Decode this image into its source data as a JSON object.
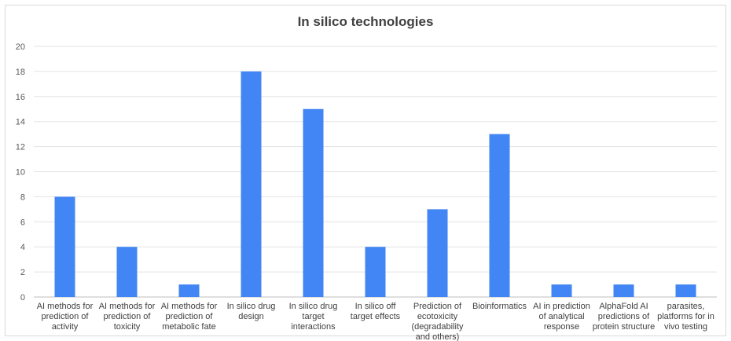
{
  "chart_data": {
    "type": "bar",
    "title": "In silico technologies",
    "xlabel": "",
    "ylabel": "",
    "ylim": [
      0,
      20
    ],
    "yticks": [
      0,
      2,
      4,
      6,
      8,
      10,
      12,
      14,
      16,
      18,
      20
    ],
    "grid": true,
    "legend": "none",
    "bar_color": "#4285f4",
    "categories": [
      "AI methods for prediction of activity",
      "AI methods for prediction of toxicity",
      "AI methods for prediction of metabolic fate",
      "In silico drug design",
      "In silico drug target interactions",
      "In silico off target effects",
      "Prediction of ecotoxicity (degradability and others)",
      "Bioinformatics",
      "AI in prediction of analytical response",
      "AlphaFold AI predictions of protein structure",
      "parasites, platforms for in vivo testing"
    ],
    "category_lines": [
      [
        "AI methods for",
        "prediction of",
        "activity"
      ],
      [
        "AI methods for",
        "prediction of",
        "toxicity"
      ],
      [
        "AI methods for",
        "prediction of",
        "metabolic fate"
      ],
      [
        "In silico drug",
        "design"
      ],
      [
        "In silico drug",
        "target",
        "interactions"
      ],
      [
        "In silico off",
        "target effects"
      ],
      [
        "Prediction of",
        "ecotoxicity",
        "(degradability",
        "and others)"
      ],
      [
        "Bioinformatics"
      ],
      [
        "AI in prediction",
        "of analytical",
        "response"
      ],
      [
        "AlphaFold AI",
        "predictions of",
        "protein structure"
      ],
      [
        "parasites,",
        "platforms for in",
        "vivo testing"
      ]
    ],
    "values": [
      8,
      4,
      1,
      18,
      15,
      4,
      7,
      13,
      1,
      1,
      1
    ]
  }
}
